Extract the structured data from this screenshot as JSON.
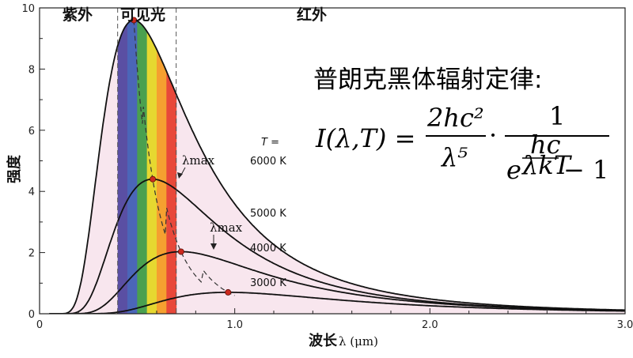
{
  "chart_data": {
    "type": "line",
    "title": "",
    "xlabel": "波长",
    "xlabel_unit": "λ (μm)",
    "ylabel": "强度",
    "xlim": [
      0,
      3.0
    ],
    "ylim": [
      0,
      10
    ],
    "x_ticks": [
      "0",
      "1.0",
      "2.0",
      "3.0"
    ],
    "y_ticks": [
      "0",
      "2",
      "4",
      "6",
      "8",
      "10"
    ],
    "regions": {
      "uv": "紫外",
      "visible": "可见光",
      "ir": "红外"
    },
    "visible_band": {
      "start": 0.4,
      "end": 0.7
    },
    "spectrum_colors": [
      "#5a4fa3",
      "#4b66b8",
      "#4aa04f",
      "#e6d830",
      "#f5a030",
      "#e8483a"
    ],
    "fill_color": "#f8e6ee",
    "temperature_header": "T =",
    "series": [
      {
        "name": "6000 K",
        "T": 6000,
        "peak_x": 0.483,
        "peak_y": 9.6
      },
      {
        "name": "5000 K",
        "T": 5000,
        "peak_x": 0.58,
        "peak_y": 4.4
      },
      {
        "name": "4000 K",
        "T": 4000,
        "peak_x": 0.725,
        "peak_y": 2.03
      },
      {
        "name": "3000 K",
        "T": 3000,
        "peak_x": 0.966,
        "peak_y": 0.7
      }
    ],
    "lambda_max_labels": [
      "λmax",
      "λmax"
    ],
    "peak_marker_color": "#cc2a1f"
  },
  "formula": {
    "title": "普朗克黑体辐射定律:",
    "lhs": "I(λ,T) =",
    "numerator": "2hc²",
    "denominator": "λ⁵",
    "dot": "·",
    "numerator2": "1",
    "exp_base": "e",
    "exp_num": "hc",
    "exp_den": "λkT",
    "minus_one": "− 1"
  }
}
